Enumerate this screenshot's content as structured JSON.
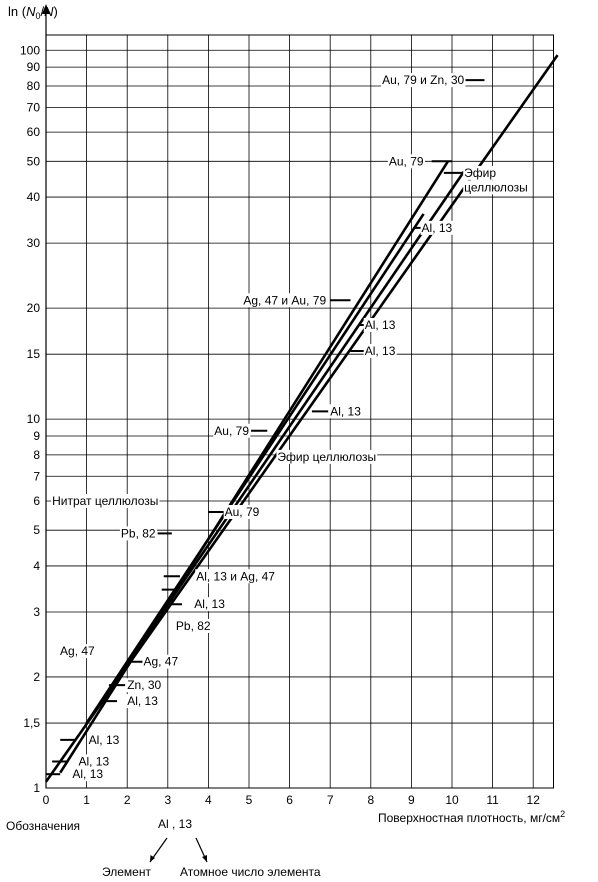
{
  "chart_data": {
    "type": "line",
    "title": "",
    "ylabel": "ln (N0/N)",
    "ylabel_parts": {
      "pre": "ln (",
      "n0": "N",
      "sub0": "0",
      "slash": "/",
      "n": "N",
      "post": ")"
    },
    "xlabel": "Поверхностная плотность, мг/см",
    "xlabel_sup": "2",
    "x_ticks": [
      "0",
      "1",
      "2",
      "3",
      "4",
      "5",
      "6",
      "7",
      "8",
      "9",
      "10",
      "11",
      "12"
    ],
    "y_ticks": [
      {
        "v": 1,
        "t": "1"
      },
      {
        "v": 1.5,
        "t": "1,5"
      },
      {
        "v": 2,
        "t": "2"
      },
      {
        "v": 3,
        "t": "3"
      },
      {
        "v": 4,
        "t": "4"
      },
      {
        "v": 5,
        "t": "5"
      },
      {
        "v": 6,
        "t": "6"
      },
      {
        "v": 7,
        "t": "7"
      },
      {
        "v": 8,
        "t": "8"
      },
      {
        "v": 9,
        "t": "9"
      },
      {
        "v": 10,
        "t": "10"
      },
      {
        "v": 15,
        "t": "15"
      },
      {
        "v": 20,
        "t": "20"
      },
      {
        "v": 30,
        "t": "30"
      },
      {
        "v": 40,
        "t": "40"
      },
      {
        "v": 50,
        "t": "50"
      },
      {
        "v": 60,
        "t": "60"
      },
      {
        "v": 70,
        "t": "70"
      },
      {
        "v": 80,
        "t": "80"
      },
      {
        "v": 90,
        "t": "90"
      },
      {
        "v": 100,
        "t": "100"
      }
    ],
    "y_scale": "log",
    "xlim": [
      0,
      12.5
    ],
    "ylim": [
      1,
      110
    ],
    "grid": true,
    "series": [
      {
        "x": [
          0,
          12.6
        ],
        "y": [
          1.04,
          97
        ]
      },
      {
        "x": [
          0.35,
          9.9
        ],
        "y": [
          1.1,
          50
        ]
      },
      {
        "x": [
          1.0,
          9.3
        ],
        "y": [
          1.5,
          36
        ]
      },
      {
        "x": [
          1.0,
          10.3
        ],
        "y": [
          1.5,
          47
        ]
      }
    ],
    "annotations": [
      {
        "text": "Au, 79 и Zn, 30",
        "x": 10.3,
        "y": 83,
        "mx": [
          10.2,
          10.8
        ],
        "anchor": "end"
      },
      {
        "text": "Au, 79",
        "x": 9.3,
        "y": 50,
        "mx": [
          9.5,
          10.0
        ],
        "anchor": "end"
      },
      {
        "text": "Эфир",
        "x": 10.3,
        "y": 46.5,
        "mx": [
          9.8,
          10.3
        ],
        "anchor": "start"
      },
      {
        "text": "целлюлозы",
        "x": 10.3,
        "y": 42.5,
        "mx": [],
        "anchor": "start"
      },
      {
        "text": "Al, 13",
        "x": 9.25,
        "y": 33,
        "mx": [
          9.05,
          9.45
        ],
        "anchor": "start"
      },
      {
        "text": "Ag, 47 и Au, 79",
        "x": 6.9,
        "y": 21,
        "mx": [
          7.0,
          7.5
        ],
        "anchor": "end"
      },
      {
        "text": "Al, 13",
        "x": 7.85,
        "y": 18,
        "mx": [
          7.7,
          8.1
        ],
        "anchor": "start"
      },
      {
        "text": "Al, 13",
        "x": 7.85,
        "y": 15.3,
        "mx": [
          7.5,
          7.9
        ],
        "anchor": "start"
      },
      {
        "text": "Al, 13",
        "x": 7.0,
        "y": 10.5,
        "mx": [
          6.55,
          6.95
        ],
        "anchor": "start"
      },
      {
        "text": "Au, 79",
        "x": 5.0,
        "y": 9.3,
        "mx": [
          5.05,
          5.45
        ],
        "anchor": "end"
      },
      {
        "text": "Эфир целлюлозы",
        "x": 5.7,
        "y": 7.9,
        "mx": [],
        "anchor": "start"
      },
      {
        "text": "Нитрат целлюлозы",
        "x": 0.15,
        "y": 6.0,
        "mx": [],
        "anchor": "start"
      },
      {
        "text": "Au, 79",
        "x": 4.4,
        "y": 5.6,
        "mx": [
          4.0,
          4.4
        ],
        "anchor": "start"
      },
      {
        "text": "Pb, 82",
        "x": 2.7,
        "y": 4.9,
        "mx": [
          2.75,
          3.1
        ],
        "anchor": "end"
      },
      {
        "text": "Al, 13 и Ag, 47",
        "x": 3.7,
        "y": 3.75,
        "mx": [
          2.9,
          3.3
        ],
        "anchor": "start"
      },
      {
        "text": "",
        "x": 0,
        "y": 3.45,
        "mx": [
          2.85,
          3.25
        ],
        "anchor": "start"
      },
      {
        "text": "Al, 13",
        "x": 3.65,
        "y": 3.15,
        "mx": [
          2.95,
          3.35
        ],
        "anchor": "start"
      },
      {
        "text": "Pb, 82",
        "x": 3.2,
        "y": 2.75,
        "mx": [],
        "anchor": "start"
      },
      {
        "text": "Ag, 47",
        "x": 1.2,
        "y": 2.35,
        "mx": [],
        "anchor": "end"
      },
      {
        "text": "Ag, 47",
        "x": 2.4,
        "y": 2.2,
        "mx": [
          2.05,
          2.45
        ],
        "anchor": "start"
      },
      {
        "text": "Zn, 30",
        "x": 2.0,
        "y": 1.9,
        "mx": [
          1.55,
          1.95
        ],
        "anchor": "start"
      },
      {
        "text": "Al, 13",
        "x": 2.0,
        "y": 1.72,
        "mx": [
          1.35,
          1.75
        ],
        "anchor": "start"
      },
      {
        "text": "Al, 13",
        "x": 1.05,
        "y": 1.35,
        "mx": [
          0.35,
          0.75
        ],
        "anchor": "start"
      },
      {
        "text": "Al, 13",
        "x": 0.8,
        "y": 1.18,
        "mx": [
          0.15,
          0.55
        ],
        "anchor": "start"
      },
      {
        "text": "Al, 13",
        "x": 0.65,
        "y": 1.09,
        "mx": [
          0,
          0.35
        ],
        "anchor": "start"
      }
    ]
  },
  "legend_note": {
    "heading": "Обозначения",
    "example": "Al , 13",
    "element": "Элемент",
    "atomic": "Атомное число элемента"
  }
}
